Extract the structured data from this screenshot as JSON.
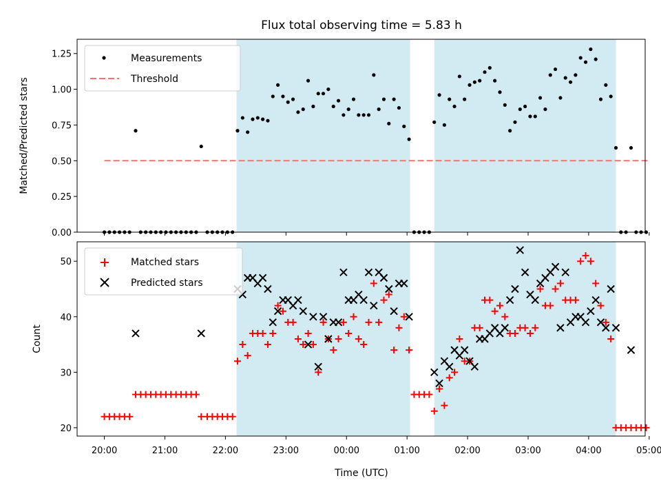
{
  "chart_data": [
    {
      "type": "scatter",
      "title": "Flux total observing time = 5.83 h",
      "xlabel": "",
      "ylabel": "Matched/Predicted stars",
      "ylim": [
        0,
        1.35
      ],
      "y_ticks": [
        0.0,
        0.25,
        0.5,
        0.75,
        1.0,
        1.25
      ],
      "y_tick_labels": [
        "0.00",
        "0.25",
        "0.50",
        "0.75",
        "1.00",
        "1.25"
      ],
      "x_tick_labels": [],
      "legend_position": "top-left",
      "legend": [
        "Measurements",
        "Threshold"
      ],
      "threshold": 0.5,
      "threshold_color": "#ff6f6f",
      "point_color": "#000000",
      "shade_color": "#add8e6",
      "shaded_ranges": [
        [
          "22:11",
          "01:03"
        ],
        [
          "01:27",
          "04:27"
        ]
      ],
      "series": [
        {
          "name": "Measurements",
          "x": [
            "20:00",
            "20:05",
            "20:10",
            "20:15",
            "20:20",
            "20:25",
            "20:31",
            "20:36",
            "20:41",
            "20:46",
            "20:51",
            "20:56",
            "21:01",
            "21:06",
            "21:11",
            "21:16",
            "21:21",
            "21:26",
            "21:31",
            "21:36",
            "21:42",
            "21:47",
            "21:52",
            "21:57",
            "22:02",
            "22:07",
            "22:12",
            "22:17",
            "22:22",
            "22:27",
            "22:32",
            "22:37",
            "22:42",
            "22:47",
            "22:52",
            "22:57",
            "23:02",
            "23:07",
            "23:12",
            "23:17",
            "23:22",
            "23:27",
            "23:32",
            "23:37",
            "23:42",
            "23:47",
            "23:52",
            "23:57",
            "00:02",
            "00:07",
            "00:12",
            "00:17",
            "00:22",
            "00:27",
            "00:32",
            "00:37",
            "00:42",
            "00:47",
            "00:52",
            "00:57",
            "01:02",
            "01:07",
            "01:12",
            "01:17",
            "01:22",
            "01:27",
            "01:32",
            "01:37",
            "01:42",
            "01:47",
            "01:52",
            "01:57",
            "02:02",
            "02:07",
            "02:12",
            "02:17",
            "02:22",
            "02:27",
            "02:32",
            "02:37",
            "02:42",
            "02:47",
            "02:52",
            "02:57",
            "03:02",
            "03:07",
            "03:12",
            "03:17",
            "03:22",
            "03:27",
            "03:32",
            "03:37",
            "03:42",
            "03:47",
            "03:52",
            "03:57",
            "04:02",
            "04:07",
            "04:12",
            "04:17",
            "04:22",
            "04:27",
            "04:32",
            "04:37",
            "04:42",
            "04:47",
            "04:52",
            "04:57"
          ],
          "y": [
            0,
            0,
            0,
            0,
            0,
            0,
            0.71,
            0,
            0,
            0,
            0,
            0,
            0,
            0,
            0,
            0,
            0,
            0,
            0,
            0.6,
            0,
            0,
            0,
            0,
            0,
            0,
            0.71,
            0.8,
            0.7,
            0.79,
            0.8,
            0.79,
            0.78,
            0.95,
            1.03,
            0.95,
            0.91,
            0.93,
            0.84,
            0.86,
            1.06,
            0.88,
            0.97,
            0.97,
            1.0,
            0.88,
            0.92,
            0.82,
            0.86,
            0.93,
            0.82,
            0.82,
            0.82,
            1.1,
            0.86,
            0.93,
            0.76,
            0.93,
            0.87,
            0.74,
            0.65,
            0,
            0,
            0,
            0,
            0.77,
            0.96,
            0.75,
            0.93,
            0.88,
            1.09,
            0.93,
            1.03,
            1.05,
            1.06,
            1.12,
            1.15,
            1.06,
            0.98,
            0.89,
            0.71,
            0.77,
            0.86,
            0.88,
            0.81,
            0.81,
            0.94,
            0.86,
            1.1,
            1.14,
            0.94,
            1.08,
            1.05,
            1.1,
            1.22,
            1.19,
            1.28,
            1.21,
            0.93,
            1.03,
            0.95,
            0.59,
            0,
            0,
            0.59,
            0,
            0,
            0
          ]
        }
      ]
    },
    {
      "type": "scatter",
      "title": "",
      "xlabel": "Time (UTC)",
      "ylabel": "Count",
      "ylim": [
        18.5,
        53.5
      ],
      "y_ticks": [
        20,
        30,
        40,
        50
      ],
      "y_tick_labels": [
        "20",
        "30",
        "40",
        "50"
      ],
      "x_ticks": [
        "20:00",
        "21:00",
        "22:00",
        "23:00",
        "00:00",
        "01:00",
        "02:00",
        "03:00",
        "04:00",
        "05:00"
      ],
      "legend_position": "top-left",
      "legend": [
        "Matched stars",
        "Predicted stars"
      ],
      "series": [
        {
          "name": "Matched stars",
          "color": "#ff0000",
          "marker": "plus",
          "x": [
            "20:00",
            "20:05",
            "20:10",
            "20:15",
            "20:20",
            "20:25",
            "20:31",
            "20:36",
            "20:41",
            "20:46",
            "20:51",
            "20:56",
            "21:01",
            "21:06",
            "21:11",
            "21:16",
            "21:21",
            "21:26",
            "21:31",
            "21:36",
            "21:42",
            "21:47",
            "21:52",
            "21:57",
            "22:02",
            "22:07",
            "22:12",
            "22:17",
            "22:22",
            "22:27",
            "22:32",
            "22:37",
            "22:42",
            "22:47",
            "22:52",
            "22:57",
            "23:02",
            "23:07",
            "23:12",
            "23:17",
            "23:22",
            "23:27",
            "23:32",
            "23:37",
            "23:42",
            "23:47",
            "23:52",
            "23:57",
            "00:02",
            "00:07",
            "00:12",
            "00:17",
            "00:22",
            "00:27",
            "00:32",
            "00:37",
            "00:42",
            "00:47",
            "00:52",
            "00:57",
            "01:02",
            "01:07",
            "01:12",
            "01:17",
            "01:22",
            "01:27",
            "01:32",
            "01:37",
            "01:42",
            "01:47",
            "01:52",
            "01:57",
            "02:02",
            "02:07",
            "02:12",
            "02:17",
            "02:22",
            "02:27",
            "02:32",
            "02:37",
            "02:42",
            "02:47",
            "02:52",
            "02:57",
            "03:02",
            "03:07",
            "03:12",
            "03:17",
            "03:22",
            "03:27",
            "03:32",
            "03:37",
            "03:42",
            "03:47",
            "03:52",
            "03:57",
            "04:02",
            "04:07",
            "04:12",
            "04:17",
            "04:22",
            "04:27",
            "04:32",
            "04:37",
            "04:42",
            "04:47",
            "04:52",
            "04:57"
          ],
          "y": [
            22,
            22,
            22,
            22,
            22,
            22,
            26,
            26,
            26,
            26,
            26,
            26,
            26,
            26,
            26,
            26,
            26,
            26,
            26,
            22,
            22,
            22,
            22,
            22,
            22,
            22,
            32,
            35,
            33,
            37,
            37,
            37,
            35,
            37,
            42,
            41,
            39,
            39,
            36,
            35,
            37,
            35,
            30,
            39,
            36,
            34,
            36,
            39,
            37,
            40,
            36,
            35,
            39,
            46,
            39,
            43,
            44,
            34,
            38,
            40,
            34,
            26,
            26,
            26,
            26,
            23,
            27,
            24,
            29,
            30,
            36,
            32,
            32,
            38,
            38,
            43,
            43,
            41,
            42,
            40,
            37,
            37,
            38,
            38,
            37,
            38,
            45,
            42,
            42,
            45,
            46,
            43,
            43,
            43,
            50,
            51,
            50,
            46,
            42,
            39,
            36,
            20,
            20,
            20,
            20,
            20,
            20,
            20
          ]
        },
        {
          "name": "Predicted stars",
          "color": "#000000",
          "marker": "x",
          "x": [
            "20:31",
            "21:36",
            "22:12",
            "22:17",
            "22:22",
            "22:27",
            "22:32",
            "22:37",
            "22:42",
            "22:47",
            "22:52",
            "22:57",
            "23:02",
            "23:07",
            "23:12",
            "23:17",
            "23:22",
            "23:27",
            "23:32",
            "23:37",
            "23:42",
            "23:47",
            "23:52",
            "23:57",
            "00:02",
            "00:07",
            "00:12",
            "00:17",
            "00:22",
            "00:27",
            "00:32",
            "00:37",
            "00:42",
            "00:47",
            "00:52",
            "00:57",
            "01:02",
            "01:27",
            "01:32",
            "01:37",
            "01:42",
            "01:47",
            "01:52",
            "01:57",
            "02:02",
            "02:07",
            "02:12",
            "02:17",
            "02:22",
            "02:27",
            "02:32",
            "02:37",
            "02:42",
            "02:47",
            "02:52",
            "02:57",
            "03:02",
            "03:07",
            "03:12",
            "03:17",
            "03:22",
            "03:27",
            "03:32",
            "03:37",
            "03:42",
            "03:47",
            "03:52",
            "03:57",
            "04:02",
            "04:07",
            "04:12",
            "04:17",
            "04:22",
            "04:27",
            "04:42"
          ],
          "y": [
            37,
            37,
            45,
            44,
            47,
            47,
            46,
            47,
            45,
            39,
            41,
            43,
            43,
            42,
            43,
            41,
            35,
            40,
            31,
            40,
            36,
            39,
            39,
            48,
            43,
            43,
            44,
            43,
            48,
            42,
            48,
            47,
            45,
            41,
            46,
            46,
            40,
            30,
            28,
            32,
            31,
            34,
            33,
            34,
            32,
            31,
            36,
            36,
            37,
            38,
            37,
            38,
            43,
            45,
            52,
            48,
            44,
            43,
            46,
            47,
            48,
            49,
            38,
            48,
            39,
            40,
            40,
            39,
            41,
            43,
            39,
            38,
            45,
            38,
            34
          ]
        }
      ]
    }
  ]
}
